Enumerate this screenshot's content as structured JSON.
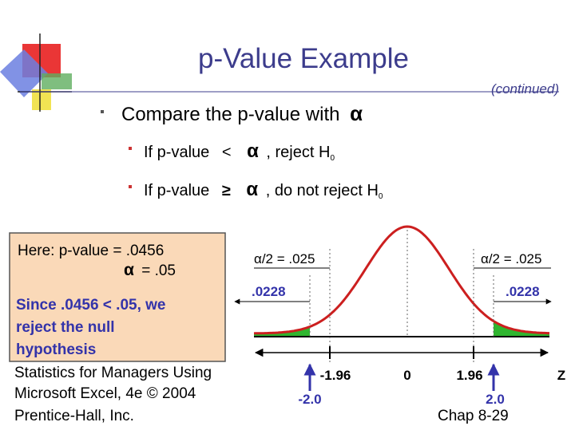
{
  "title": "p-Value Example",
  "continued": "(continued)",
  "rule": {
    "text": "Compare the p-value with",
    "symbol": "α"
  },
  "cases": [
    {
      "prefix": "If  p-value",
      "operator": "<",
      "symbol": "α",
      "action": ", reject H",
      "subscript": "0"
    },
    {
      "prefix": "If  p-value",
      "operator": "≥",
      "symbol": "α",
      "action": ", do not reject H",
      "subscript": "0"
    }
  ],
  "box": {
    "line1": "Here:  p-value = .0456",
    "symbol": "α",
    "line2": "= .05",
    "conclusion": [
      "Since .0456 < .05, we",
      "reject the null",
      "hypothesis"
    ]
  },
  "diagram": {
    "left_alpha": "α/2 = .025",
    "right_alpha": "α/2 = .025",
    "left_p": ".0228",
    "right_p": ".0228",
    "ticks": [
      "-1.96",
      "0",
      "1.96"
    ],
    "axis_label": "Z",
    "left_stat": "-2.0",
    "right_stat": "2.0"
  },
  "footer": {
    "source": [
      "Statistics for Managers Using",
      "Microsoft Excel, 4e © 2004",
      "Prentice-Hall, Inc."
    ],
    "page": "Chap 8-29"
  }
}
